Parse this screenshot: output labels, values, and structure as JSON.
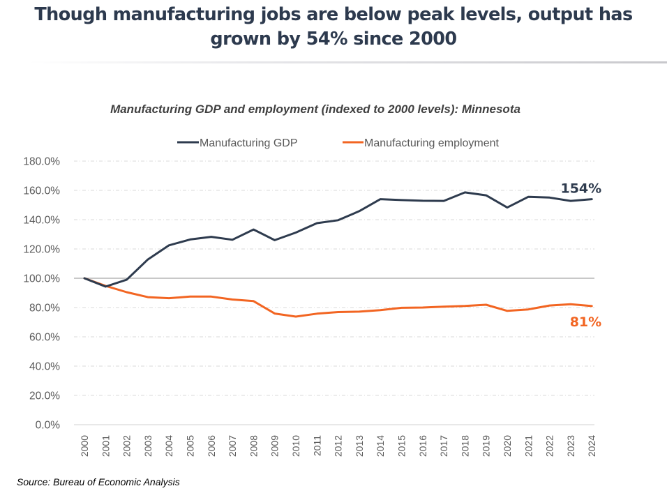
{
  "page": {
    "title": "Though manufacturing jobs are below peak levels, output has grown by 54% since 2000",
    "title_line1": "Though manufacturing jobs are below peak levels, output has",
    "title_line2": "grown by 54% since 2000",
    "source": "Source: Bureau of Economic Analysis"
  },
  "chart_data": {
    "type": "line",
    "title": "Manufacturing GDP and employment (indexed to 2000 levels): Minnesota",
    "xlabel": "",
    "ylabel": "",
    "x": [
      "2000",
      "2001",
      "2002",
      "2003",
      "2004",
      "2005",
      "2006",
      "2007",
      "2008",
      "2009",
      "2010",
      "2011",
      "2012",
      "2013",
      "2014",
      "2015",
      "2016",
      "2017",
      "2018",
      "2019",
      "2020",
      "2021",
      "2022",
      "2023",
      "2024"
    ],
    "ylim": [
      0,
      180
    ],
    "yticks": [
      0,
      20,
      40,
      60,
      80,
      100,
      120,
      140,
      160,
      180
    ],
    "ytick_labels": [
      "0.0%",
      "20.0%",
      "40.0%",
      "60.0%",
      "80.0%",
      "100.0%",
      "120.0%",
      "140.0%",
      "160.0%",
      "180.0%"
    ],
    "reference_line": 100,
    "grid": true,
    "legend_position": "top-center",
    "series": [
      {
        "name": "Manufacturing GDP",
        "color": "#2e3b4e",
        "values": [
          100.0,
          94.3,
          99.0,
          112.8,
          122.5,
          126.5,
          128.3,
          126.3,
          133.3,
          126.0,
          131.2,
          137.6,
          139.6,
          145.8,
          154.0,
          153.4,
          152.9,
          152.8,
          158.6,
          156.6,
          148.3,
          155.6,
          155.1,
          152.8,
          154.0
        ],
        "end_label": "154%"
      },
      {
        "name": "Manufacturing employment",
        "color": "#f26522",
        "values": [
          100.0,
          94.8,
          90.5,
          87.1,
          86.4,
          87.5,
          87.5,
          85.5,
          84.4,
          75.9,
          73.8,
          75.8,
          76.9,
          77.2,
          78.2,
          79.8,
          80.0,
          80.6,
          81.1,
          81.9,
          77.7,
          78.7,
          81.4,
          82.3,
          81.0
        ],
        "end_label": "81%"
      }
    ]
  }
}
